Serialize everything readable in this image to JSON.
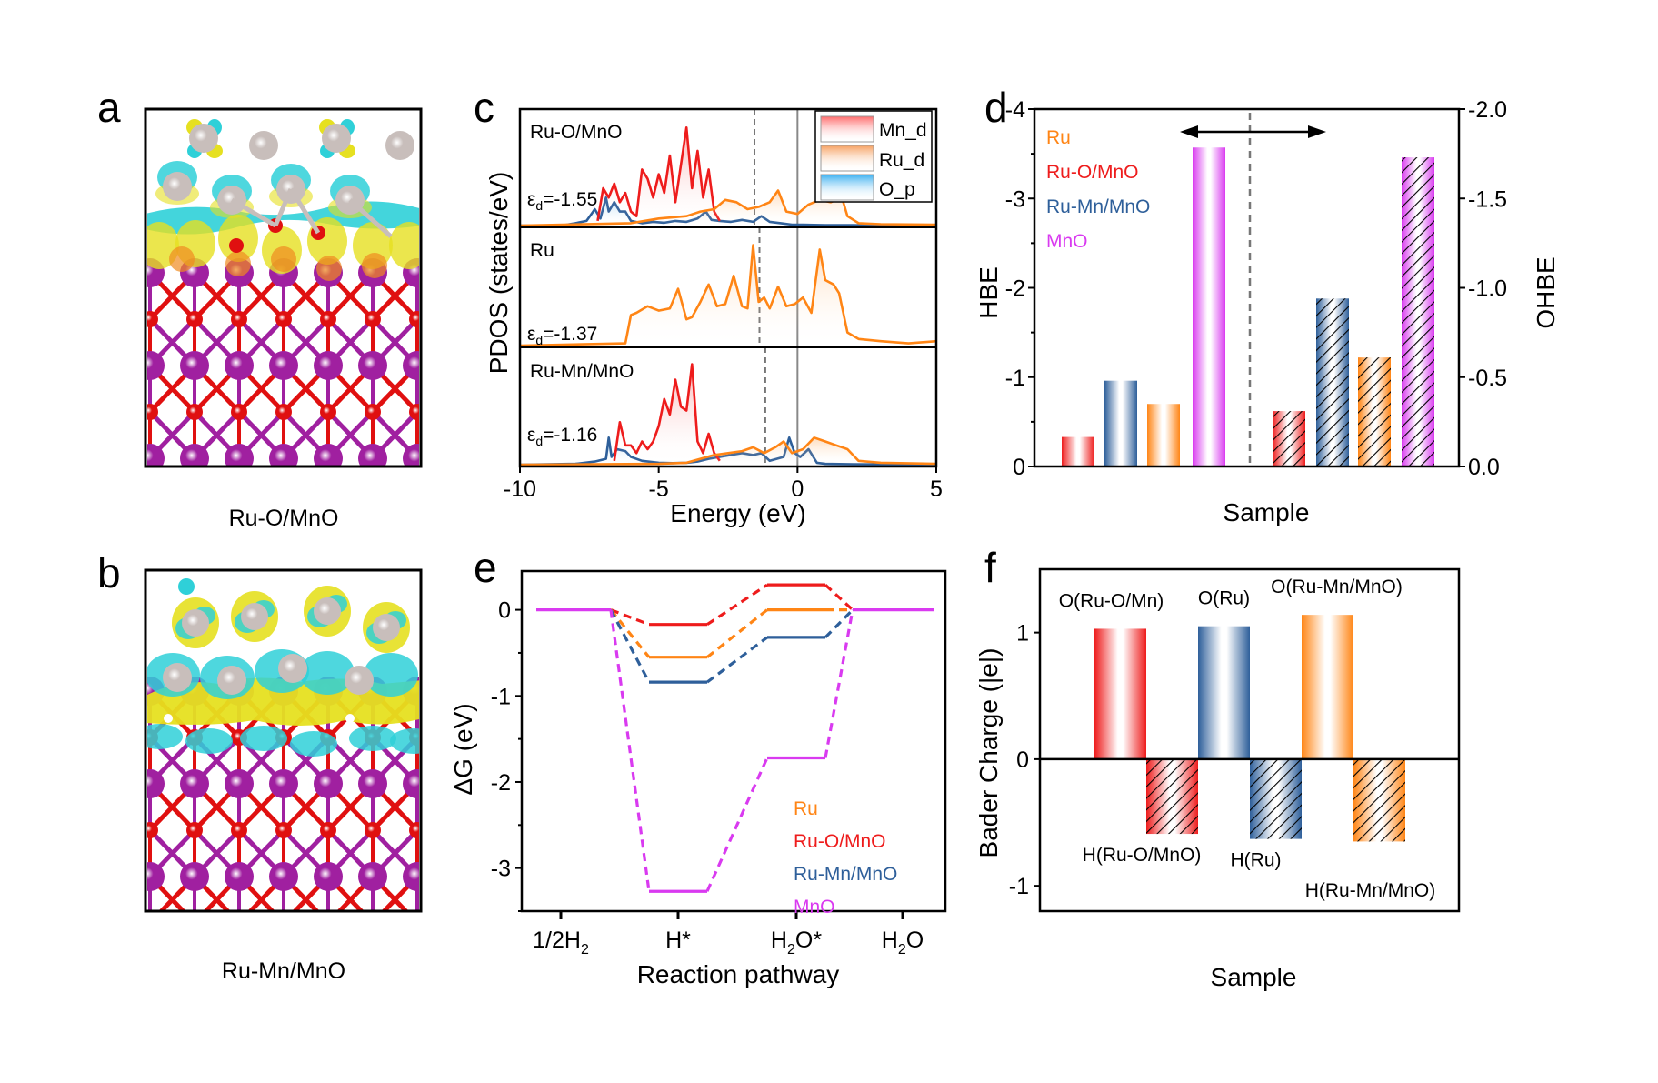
{
  "figure": {
    "panels": [
      "a",
      "b",
      "c",
      "d",
      "e",
      "f"
    ]
  },
  "panel_a": {
    "letter": "a",
    "caption": "Ru-O/MnO",
    "colors": {
      "ru": "#c8bebb",
      "o": "#e01010",
      "mn": "#a020a0",
      "cyan": "#2fd0d8",
      "yellow": "#e6e020"
    }
  },
  "panel_b": {
    "letter": "b",
    "caption": "Ru-Mn/MnO",
    "colors": {
      "ru": "#c8bebb",
      "o": "#e01010",
      "mn": "#a020a0",
      "cyan": "#2fd0d8",
      "yellow": "#e6e020"
    }
  },
  "chart_data": [
    {
      "id": "c",
      "type": "line",
      "letter": "c",
      "title": "",
      "xlabel": "Energy (eV)",
      "ylabel": "PDOS (states/eV)",
      "xlim": [
        -10,
        5
      ],
      "xticks": [
        -10,
        -5,
        0,
        5
      ],
      "xtick_labels": [
        "-10",
        "-5",
        "0",
        "5"
      ],
      "legend": {
        "placement": "top-right",
        "entries": [
          {
            "name": "Mn_d",
            "color": "#ee1c1c"
          },
          {
            "name": "Ru_d",
            "color": "#ff8515"
          },
          {
            "name": "O_p",
            "color": "#2a9ee8"
          }
        ]
      },
      "fermi_level": 0,
      "subpanels": [
        {
          "label": "Ru-O/MnO",
          "ed_text": "=-1.55",
          "d_band_center": -1.55,
          "series": [
            {
              "name": "O_p",
              "color": "#2e5f9a",
              "x": [
                -10,
                -8.5,
                -8,
                -7.6,
                -7.3,
                -7.1,
                -6.9,
                -6.8,
                -6.6,
                -6.4,
                -6.2,
                -6.0,
                -5.6,
                -5.2,
                -4.8,
                -4.4,
                -4.0,
                -3.6,
                -3.3,
                -3.1,
                -2.8,
                -2.4,
                -2.0,
                -1.6,
                -1.3,
                -1.0,
                -0.6,
                -0.2,
                0.2,
                1,
                2,
                3,
                5
              ],
              "y": [
                0,
                0,
                0.05,
                0.1,
                0.35,
                0.15,
                0.6,
                0.3,
                0.5,
                0.3,
                0.3,
                0.1,
                0.05,
                0.08,
                0.06,
                0.1,
                0.08,
                0.15,
                0.3,
                0.12,
                0.1,
                0.08,
                0.12,
                0.08,
                0.2,
                0.08,
                0.05,
                0.02,
                0.02,
                0.01,
                0.01,
                0,
                0
              ]
            },
            {
              "name": "Mn_d",
              "color": "#ee1c1c",
              "x": [
                -7.2,
                -7.0,
                -6.8,
                -6.6,
                -6.4,
                -6.2,
                -6.0,
                -5.8,
                -5.6,
                -5.4,
                -5.2,
                -5.0,
                -4.8,
                -4.6,
                -4.4,
                -4.2,
                -4.0,
                -3.8,
                -3.6,
                -3.4,
                -3.2,
                -3.0,
                -2.8
              ],
              "y": [
                0.1,
                0.8,
                0.6,
                0.9,
                0.5,
                0.7,
                0.3,
                0.2,
                1.2,
                1.0,
                0.6,
                1.1,
                0.7,
                1.5,
                0.5,
                1.3,
                2.1,
                0.8,
                1.6,
                0.6,
                1.2,
                0.3,
                0.1
              ]
            },
            {
              "name": "Ru_d",
              "color": "#ff8515",
              "x": [
                -10,
                -6,
                -5,
                -4,
                -3.5,
                -3,
                -2.6,
                -2.2,
                -1.8,
                -1.4,
                -1.0,
                -0.7,
                -0.4,
                0,
                0.4,
                0.8,
                1.2,
                1.6,
                1.8,
                2.2,
                3,
                5
              ],
              "y": [
                0,
                0.05,
                0.15,
                0.2,
                0.3,
                0.35,
                0.55,
                0.5,
                0.35,
                0.4,
                0.5,
                0.75,
                0.3,
                0.25,
                0.45,
                0.55,
                0.5,
                0.6,
                0.2,
                0.05,
                0.03,
                0.02
              ]
            }
          ]
        },
        {
          "label": "Ru",
          "ed_text": "=-1.37",
          "d_band_center": -1.37,
          "series": [
            {
              "name": "Ru_d",
              "color": "#ff8515",
              "x": [
                -10,
                -6.2,
                -6.0,
                -5.8,
                -5.4,
                -5.0,
                -4.6,
                -4.3,
                -4.0,
                -3.8,
                -3.5,
                -3.2,
                -2.9,
                -2.6,
                -2.3,
                -2.0,
                -1.8,
                -1.6,
                -1.4,
                -1.2,
                -1.0,
                -0.7,
                -0.4,
                -0.1,
                0.2,
                0.5,
                0.8,
                1.0,
                1.3,
                1.5,
                1.8,
                2.2,
                3,
                4,
                5
              ],
              "y": [
                0,
                0.05,
                0.7,
                0.75,
                0.9,
                0.8,
                0.85,
                1.3,
                0.6,
                0.65,
                1.0,
                1.4,
                0.9,
                0.95,
                1.6,
                0.9,
                0.85,
                2.3,
                1.0,
                1.1,
                0.85,
                1.35,
                0.9,
                0.95,
                1.1,
                0.75,
                2.2,
                1.5,
                1.4,
                1.2,
                0.3,
                0.15,
                0.1,
                0.05,
                0.1
              ]
            }
          ]
        },
        {
          "label": "Ru-Mn/MnO",
          "ed_text": "=-1.16",
          "d_band_center": -1.16,
          "series": [
            {
              "name": "O_p",
              "color": "#2e5f9a",
              "x": [
                -10,
                -8,
                -7.3,
                -6.9,
                -6.8,
                -6.7,
                -6.5,
                -6.2,
                -6.0,
                -5.6,
                -5.0,
                -4.5,
                -4.0,
                -3.6,
                -3.2,
                -2.8,
                -2.4,
                -2.0,
                -1.6,
                -1.3,
                -1.0,
                -0.5,
                -0.3,
                -0.1,
                0.1,
                0.4,
                0.7,
                1.0,
                2,
                5
              ],
              "y": [
                0,
                0.02,
                0.08,
                0.15,
                0.7,
                0.2,
                0.4,
                0.35,
                0.2,
                0.1,
                0.05,
                0.04,
                0.05,
                0.08,
                0.15,
                0.2,
                0.25,
                0.3,
                0.25,
                0.3,
                0.1,
                0.2,
                0.7,
                0.3,
                0.2,
                0.4,
                0.05,
                0.02,
                0.01,
                0
              ]
            },
            {
              "name": "Mn_d",
              "color": "#ee1c1c",
              "x": [
                -6.6,
                -6.4,
                -6.2,
                -6.0,
                -5.8,
                -5.6,
                -5.4,
                -5.2,
                -5.0,
                -4.8,
                -4.6,
                -4.4,
                -4.2,
                -4.0,
                -3.8,
                -3.6,
                -3.4,
                -3.2,
                -3.0,
                -2.8
              ],
              "y": [
                0.1,
                1.1,
                0.5,
                0.5,
                0.3,
                0.6,
                0.4,
                0.6,
                1.0,
                1.7,
                1.3,
                2.2,
                1.5,
                1.4,
                2.6,
                0.6,
                0.3,
                0.8,
                0.3,
                0.1
              ]
            },
            {
              "name": "Ru_d",
              "color": "#ff8515",
              "x": [
                -10,
                -5,
                -4,
                -3,
                -2.5,
                -2.0,
                -1.6,
                -1.2,
                -0.8,
                -0.5,
                -0.2,
                0.2,
                0.6,
                1.0,
                1.4,
                1.8,
                2.2,
                3,
                5
              ],
              "y": [
                0,
                0.02,
                0.05,
                0.25,
                0.3,
                0.35,
                0.45,
                0.3,
                0.45,
                0.6,
                0.3,
                0.4,
                0.7,
                0.6,
                0.5,
                0.4,
                0.1,
                0.05,
                0.02
              ]
            }
          ]
        }
      ]
    },
    {
      "id": "d",
      "type": "bar",
      "letter": "d",
      "xlabel": "Sample",
      "ylabel": "HBE",
      "y2label": "OHBE",
      "ylim": [
        0,
        -4
      ],
      "y2lim": [
        0,
        -2
      ],
      "yticks": [
        0,
        -1,
        -2,
        -3,
        -4
      ],
      "ytick_labels": [
        "0",
        "-1",
        "-2",
        "-3",
        "-4"
      ],
      "y2ticks": [
        0,
        -0.5,
        -1.0,
        -1.5,
        -2.0
      ],
      "y2tick_labels": [
        "0.0",
        "-0.5",
        "-1.0",
        "-1.5",
        "-2.0"
      ],
      "legend": {
        "placement": "top-left",
        "entries": [
          {
            "name": "Ru",
            "color": "#ff8515"
          },
          {
            "name": "Ru-O/MnO",
            "color": "#ee1c1c"
          },
          {
            "name": "Ru-Mn/MnO",
            "color": "#2e5f9a"
          },
          {
            "name": "MnO",
            "color": "#d93af0"
          }
        ]
      },
      "categories": [
        "Ru-O/MnO",
        "Ru-Mn/MnO",
        "Ru",
        "MnO"
      ],
      "series": [
        {
          "name": "HBE",
          "axis": "left",
          "hatched": false,
          "values": [
            -0.33,
            -0.96,
            -0.7,
            -3.57
          ]
        },
        {
          "name": "OHBE",
          "axis": "right",
          "hatched": true,
          "values": [
            -0.31,
            -0.94,
            -0.61,
            -1.73
          ]
        }
      ],
      "bar_colors": [
        "#ee1c1c",
        "#2e5f9a",
        "#ff8515",
        "#d93af0"
      ],
      "annotation": "double-headed arrow across dashed divider"
    },
    {
      "id": "e",
      "type": "line",
      "letter": "e",
      "xlabel": "Reaction pathway",
      "ylabel": "ΔG (eV)",
      "ylim": [
        -3.5,
        0.45
      ],
      "yticks": [
        0,
        -1,
        -2,
        -3
      ],
      "ytick_labels": [
        "0",
        "-1",
        "-2",
        "-3"
      ],
      "categories": [
        {
          "main": "1/2H",
          "sub": "2",
          "tail": ""
        },
        {
          "main": "H*",
          "sub": "",
          "tail": ""
        },
        {
          "main": "H",
          "sub": "2",
          "tail": "O*"
        },
        {
          "main": "H",
          "sub": "2",
          "tail": "O"
        }
      ],
      "legend": {
        "placement": "bottom-right",
        "entries": [
          {
            "name": "Ru",
            "color": "#ff8515"
          },
          {
            "name": "Ru-O/MnO",
            "color": "#ee1c1c"
          },
          {
            "name": "Ru-Mn/MnO",
            "color": "#2e5f9a"
          },
          {
            "name": "MnO",
            "color": "#d93af0"
          }
        ]
      },
      "series": [
        {
          "name": "Ru-O/MnO",
          "color": "#ee1c1c",
          "values": [
            0,
            -0.17,
            0.29,
            0
          ]
        },
        {
          "name": "Ru",
          "color": "#ff8515",
          "values": [
            0,
            -0.55,
            0.0,
            0
          ]
        },
        {
          "name": "Ru-Mn/MnO",
          "color": "#2e5f9a",
          "values": [
            0,
            -0.84,
            -0.32,
            0
          ]
        },
        {
          "name": "MnO",
          "color": "#d93af0",
          "values": [
            0,
            -3.27,
            -1.72,
            0
          ]
        }
      ]
    },
    {
      "id": "f",
      "type": "bar",
      "letter": "f",
      "xlabel": "Sample",
      "ylabel": "Bader Charge (|e|)",
      "ylim": [
        -1.2,
        1.5
      ],
      "yticks": [
        1,
        0,
        -1
      ],
      "ytick_labels": [
        "1",
        "0",
        "-1"
      ],
      "bars": [
        {
          "label": "O(Ru-O/Mn)",
          "value": 1.03,
          "color": "#ee1c1c",
          "hatched": false,
          "label_pos": "above"
        },
        {
          "label": "H(Ru-O/MnO)",
          "value": -0.59,
          "color": "#ee1c1c",
          "hatched": true,
          "label_pos": "below"
        },
        {
          "label": "O(Ru)",
          "value": 1.05,
          "color": "#2e5f9a",
          "hatched": false,
          "label_pos": "above"
        },
        {
          "label": "H(Ru)",
          "value": -0.63,
          "color": "#2e5f9a",
          "hatched": true,
          "label_pos": "below"
        },
        {
          "label": "O(Ru-Mn/MnO)",
          "value": 1.14,
          "color": "#ff8515",
          "hatched": false,
          "label_pos": "above"
        },
        {
          "label": "H(Ru-Mn/MnO)",
          "value": -0.65,
          "color": "#ff8515",
          "hatched": true,
          "label_pos": "bottom"
        }
      ]
    }
  ]
}
